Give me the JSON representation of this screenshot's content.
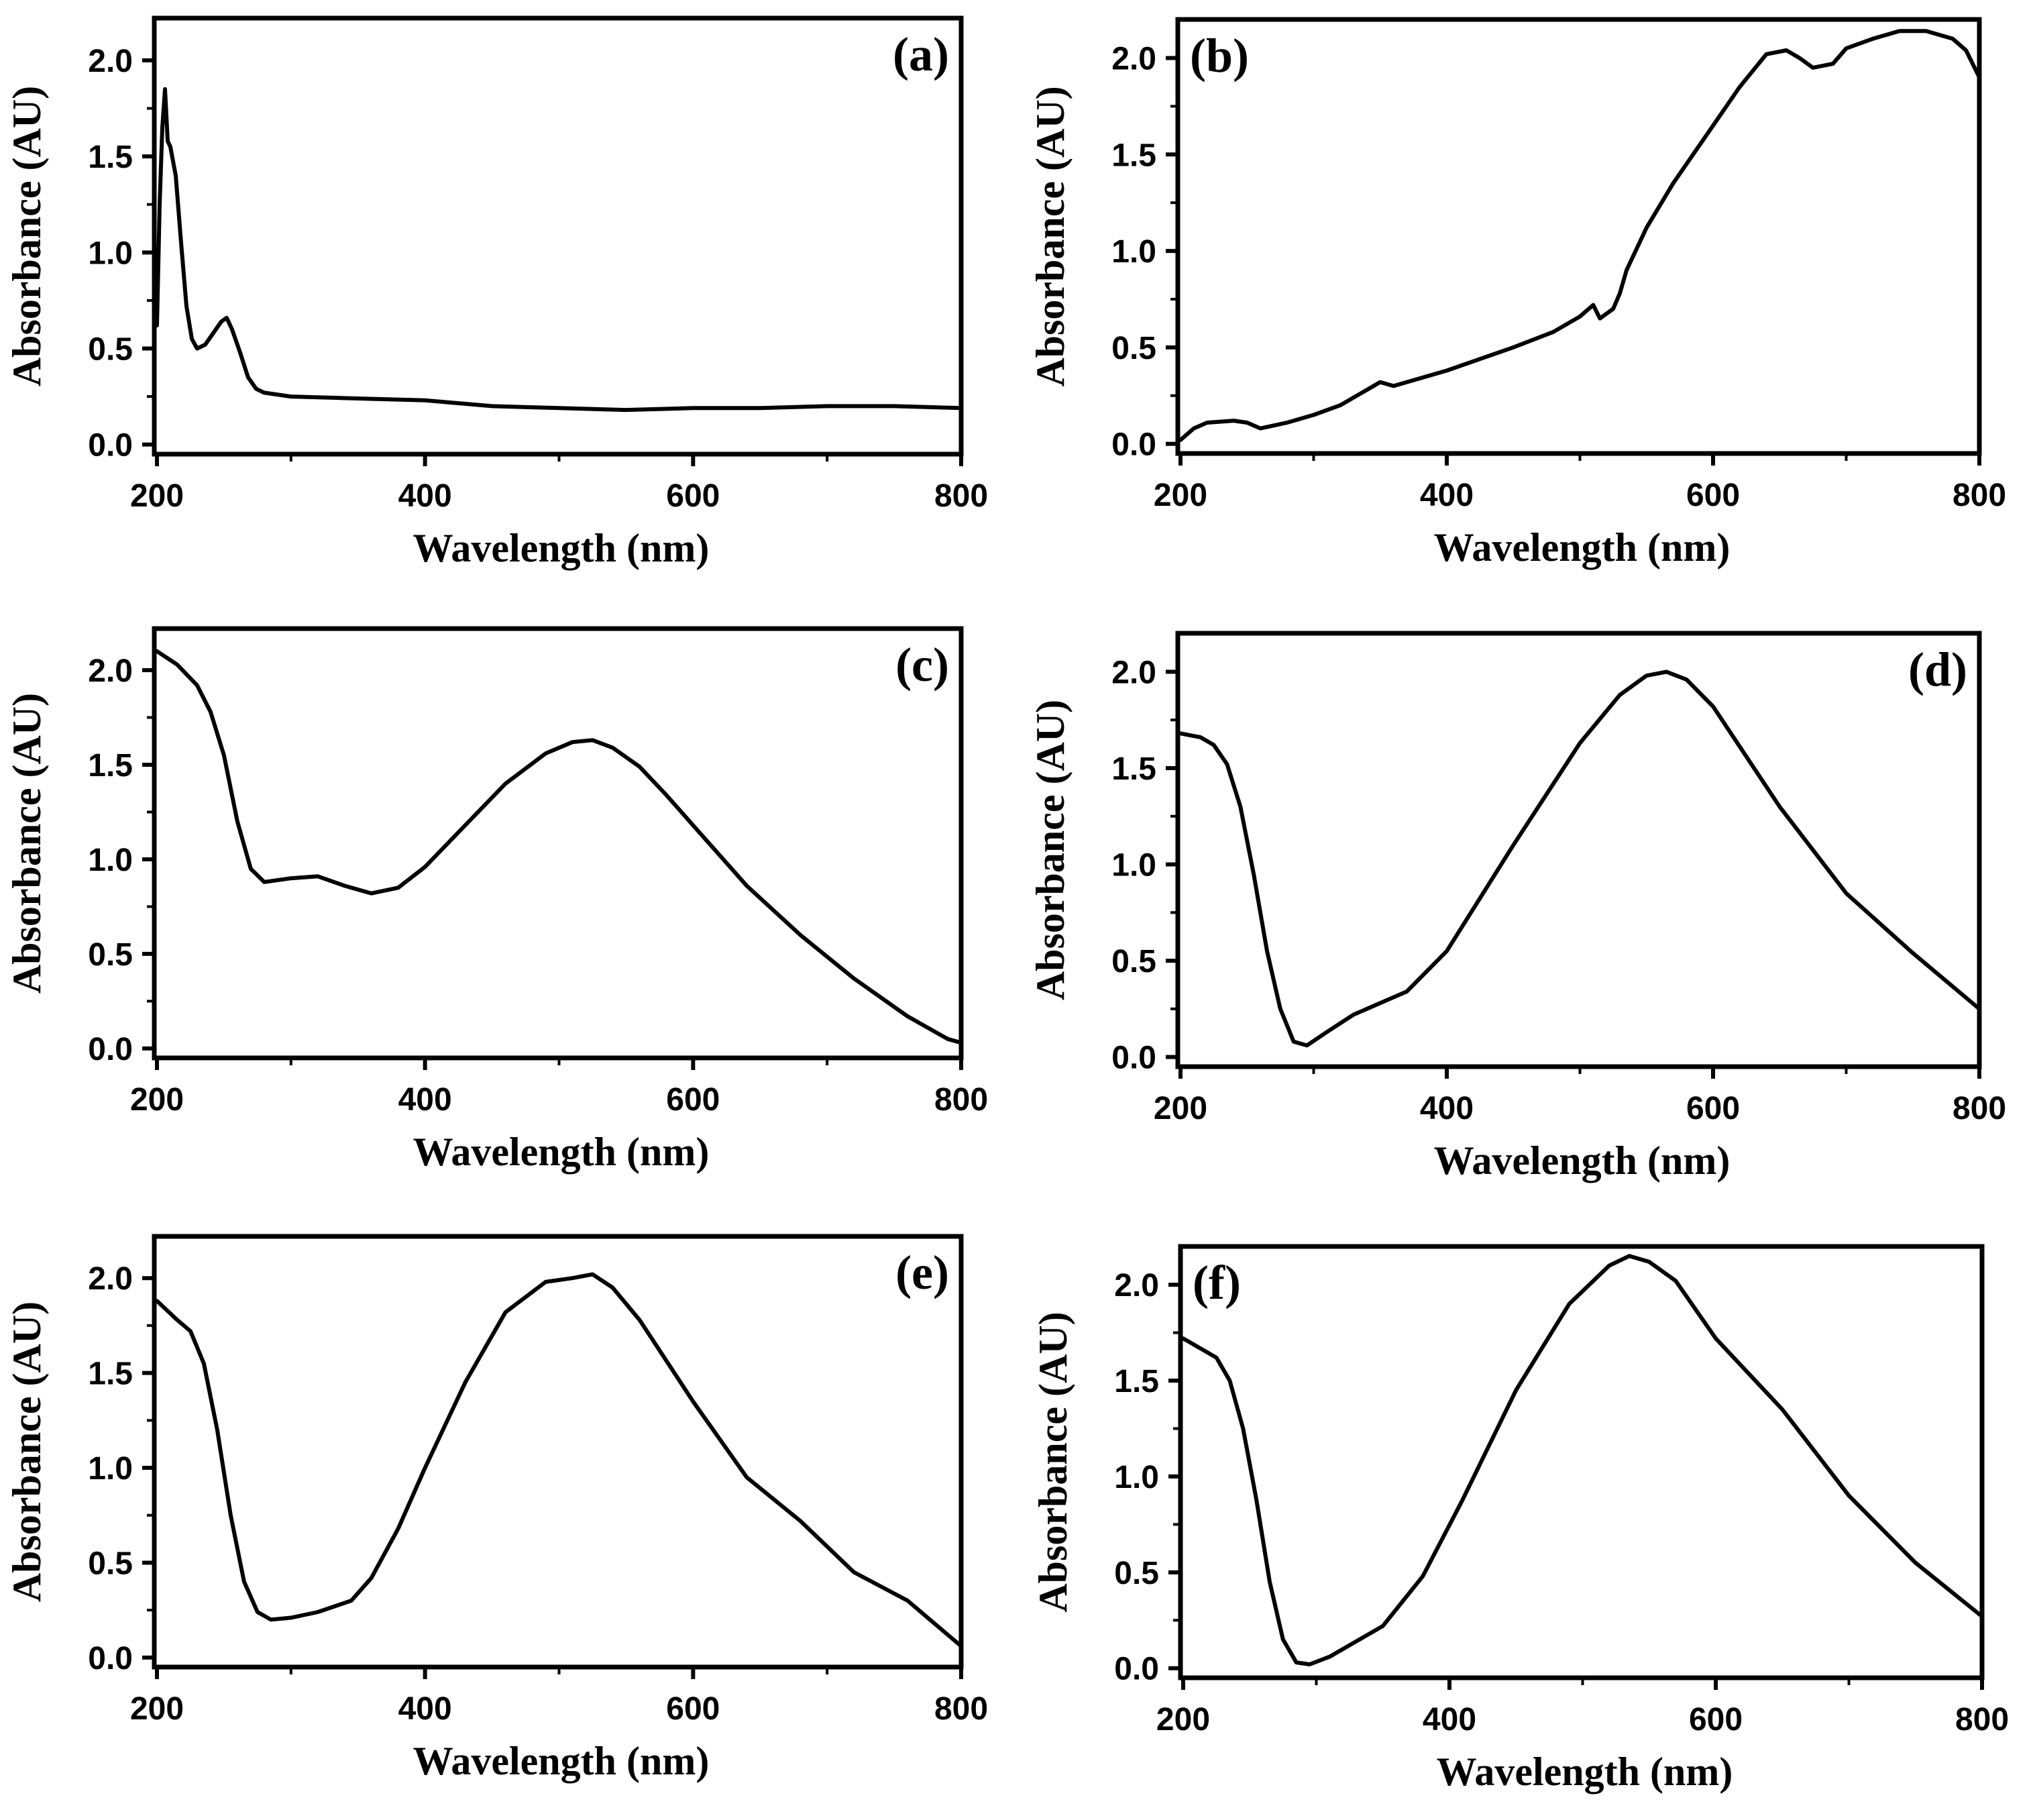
{
  "chart_data": [
    {
      "type": "line",
      "panel_label": "(a)",
      "xlabel": "Wavelength (nm)",
      "ylabel": "Absorbance (AU)",
      "xlim": [
        198,
        800
      ],
      "ylim": [
        -0.05,
        2.22
      ],
      "xticks": [
        200,
        400,
        600,
        800
      ],
      "yticks": [
        "0.0",
        "0.5",
        "1.0",
        "1.5",
        "2.0"
      ],
      "x": [
        200,
        202,
        204,
        206,
        208,
        210,
        214,
        218,
        222,
        226,
        230,
        236,
        242,
        248,
        252,
        256,
        262,
        268,
        274,
        280,
        300,
        350,
        400,
        450,
        500,
        550,
        600,
        650,
        700,
        750,
        800
      ],
      "y": [
        0.62,
        1.25,
        1.65,
        1.85,
        1.58,
        1.55,
        1.4,
        1.05,
        0.72,
        0.55,
        0.5,
        0.52,
        0.58,
        0.64,
        0.66,
        0.6,
        0.48,
        0.35,
        0.29,
        0.27,
        0.25,
        0.24,
        0.23,
        0.2,
        0.19,
        0.18,
        0.19,
        0.19,
        0.2,
        0.2,
        0.19
      ]
    },
    {
      "type": "line",
      "panel_label": "(b)",
      "xlabel": "Wavelength (nm)",
      "ylabel": "Absorbance (AU)",
      "xlim": [
        198,
        800
      ],
      "ylim": [
        -0.05,
        2.2
      ],
      "xticks": [
        200,
        400,
        600,
        800
      ],
      "yticks": [
        "0.0",
        "0.5",
        "1.0",
        "1.5",
        "2.0"
      ],
      "x": [
        200,
        210,
        220,
        240,
        250,
        260,
        280,
        300,
        320,
        340,
        350,
        360,
        380,
        400,
        450,
        480,
        500,
        510,
        515,
        525,
        530,
        535,
        550,
        570,
        600,
        620,
        640,
        655,
        665,
        675,
        690,
        700,
        720,
        740,
        760,
        780,
        790,
        800
      ],
      "y": [
        0.02,
        0.08,
        0.11,
        0.12,
        0.11,
        0.08,
        0.11,
        0.15,
        0.2,
        0.28,
        0.32,
        0.3,
        0.34,
        0.38,
        0.5,
        0.58,
        0.66,
        0.72,
        0.65,
        0.7,
        0.78,
        0.9,
        1.12,
        1.35,
        1.65,
        1.85,
        2.02,
        2.04,
        2.0,
        1.95,
        1.97,
        2.05,
        2.1,
        2.14,
        2.14,
        2.1,
        2.04,
        1.9
      ]
    },
    {
      "type": "line",
      "panel_label": "(c)",
      "xlabel": "Wavelength (nm)",
      "ylabel": "Absorbance (AU)",
      "xlim": [
        198,
        800
      ],
      "ylim": [
        -0.05,
        2.22
      ],
      "xticks": [
        200,
        400,
        600,
        800
      ],
      "yticks": [
        "0.0",
        "0.5",
        "1.0",
        "1.5",
        "2.0"
      ],
      "x": [
        200,
        215,
        230,
        240,
        250,
        260,
        270,
        280,
        300,
        320,
        340,
        360,
        380,
        400,
        430,
        460,
        490,
        510,
        525,
        540,
        560,
        580,
        600,
        640,
        680,
        720,
        760,
        790,
        800
      ],
      "y": [
        2.1,
        2.03,
        1.92,
        1.78,
        1.55,
        1.2,
        0.95,
        0.88,
        0.9,
        0.91,
        0.86,
        0.82,
        0.85,
        0.96,
        1.18,
        1.4,
        1.56,
        1.62,
        1.63,
        1.59,
        1.49,
        1.34,
        1.18,
        0.86,
        0.6,
        0.37,
        0.17,
        0.05,
        0.03
      ]
    },
    {
      "type": "line",
      "panel_label": "(d)",
      "xlabel": "Wavelength (nm)",
      "ylabel": "Absorbance (AU)",
      "xlim": [
        198,
        800
      ],
      "ylim": [
        -0.05,
        2.2
      ],
      "xticks": [
        200,
        400,
        600,
        800
      ],
      "yticks": [
        "0.0",
        "0.5",
        "1.0",
        "1.5",
        "2.0"
      ],
      "x": [
        200,
        215,
        225,
        235,
        245,
        255,
        265,
        275,
        285,
        295,
        310,
        330,
        350,
        370,
        400,
        450,
        500,
        530,
        550,
        565,
        580,
        600,
        650,
        700,
        750,
        800
      ],
      "y": [
        1.68,
        1.66,
        1.62,
        1.52,
        1.3,
        0.95,
        0.55,
        0.25,
        0.08,
        0.06,
        0.13,
        0.22,
        0.28,
        0.34,
        0.55,
        1.1,
        1.63,
        1.88,
        1.98,
        2.0,
        1.96,
        1.82,
        1.3,
        0.85,
        0.54,
        0.25
      ]
    },
    {
      "type": "line",
      "panel_label": "(e)",
      "xlabel": "Wavelength (nm)",
      "ylabel": "Absorbance (AU)",
      "xlim": [
        198,
        800
      ],
      "ylim": [
        -0.05,
        2.22
      ],
      "xticks": [
        200,
        400,
        600,
        800
      ],
      "yticks": [
        "0.0",
        "0.5",
        "1.0",
        "1.5",
        "2.0"
      ],
      "x": [
        200,
        215,
        225,
        235,
        245,
        255,
        265,
        275,
        285,
        300,
        320,
        345,
        360,
        380,
        400,
        430,
        460,
        490,
        510,
        525,
        540,
        560,
        600,
        640,
        680,
        720,
        760,
        790,
        800
      ],
      "y": [
        1.88,
        1.78,
        1.72,
        1.55,
        1.2,
        0.75,
        0.4,
        0.24,
        0.2,
        0.21,
        0.24,
        0.3,
        0.42,
        0.68,
        1.0,
        1.45,
        1.82,
        1.98,
        2.0,
        2.02,
        1.95,
        1.78,
        1.35,
        0.95,
        0.72,
        0.45,
        0.3,
        0.12,
        0.06
      ]
    },
    {
      "type": "line",
      "panel_label": "(f)",
      "xlabel": "Wavelength (nm)",
      "ylabel": "Absorbance (AU)",
      "xlim": [
        198,
        800
      ],
      "ylim": [
        -0.05,
        2.2
      ],
      "xticks": [
        200,
        400,
        600,
        800
      ],
      "yticks": [
        "0.0",
        "0.5",
        "1.0",
        "1.5",
        "2.0"
      ],
      "x": [
        200,
        215,
        225,
        235,
        245,
        255,
        265,
        275,
        285,
        295,
        310,
        330,
        350,
        380,
        410,
        450,
        490,
        520,
        535,
        550,
        570,
        600,
        650,
        700,
        750,
        800
      ],
      "y": [
        1.72,
        1.66,
        1.62,
        1.5,
        1.25,
        0.88,
        0.45,
        0.15,
        0.03,
        0.02,
        0.06,
        0.14,
        0.22,
        0.48,
        0.88,
        1.45,
        1.9,
        2.1,
        2.15,
        2.12,
        2.02,
        1.72,
        1.35,
        0.9,
        0.55,
        0.27
      ]
    }
  ]
}
